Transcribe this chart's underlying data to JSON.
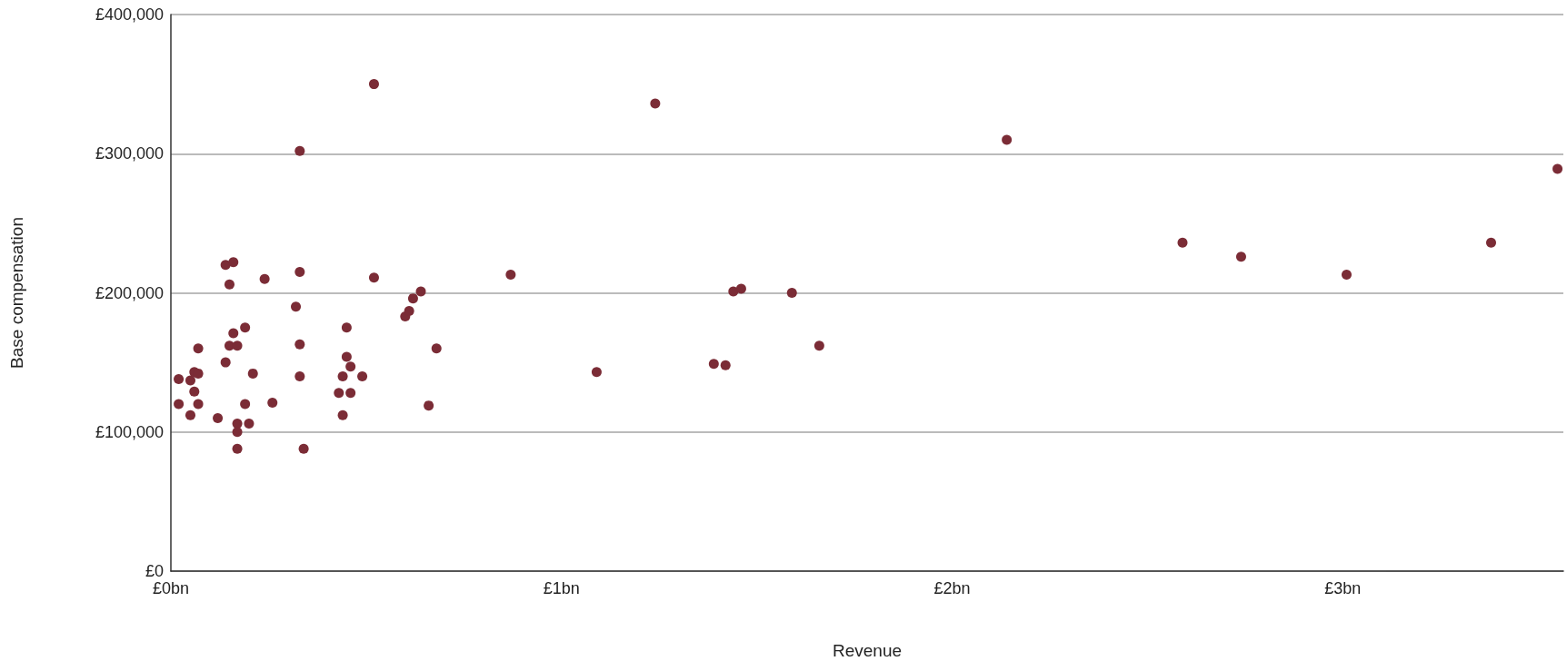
{
  "chart_data": {
    "type": "scatter",
    "xlabel": "Revenue",
    "ylabel": "Base compensation",
    "marker": "circle",
    "grid": "y",
    "xlim": [
      0,
      3.565
    ],
    "xticks": [
      {
        "value": 0,
        "label": "£0bn"
      },
      {
        "value": 1,
        "label": "£1bn"
      },
      {
        "value": 2,
        "label": "£2bn"
      },
      {
        "value": 3,
        "label": "£3bn"
      }
    ],
    "ylim": [
      0,
      400000
    ],
    "yticks": [
      {
        "value": 0,
        "label": "£0"
      },
      {
        "value": 100000,
        "label": "£100,000"
      },
      {
        "value": 200000,
        "label": "£200,000"
      },
      {
        "value": 300000,
        "label": "£300,000"
      },
      {
        "value": 400000,
        "label": "£400,000"
      }
    ],
    "series": [
      {
        "color": "#7b2c36",
        "x": [
          0.02,
          0.02,
          0.05,
          0.05,
          0.06,
          0.06,
          0.07,
          0.07,
          0.07,
          0.12,
          0.14,
          0.14,
          0.15,
          0.15,
          0.16,
          0.16,
          0.17,
          0.17,
          0.17,
          0.17,
          0.19,
          0.19,
          0.2,
          0.21,
          0.24,
          0.26,
          0.32,
          0.33,
          0.33,
          0.33,
          0.33,
          0.34,
          0.43,
          0.44,
          0.44,
          0.45,
          0.45,
          0.46,
          0.46,
          0.49,
          0.52,
          0.52,
          0.6,
          0.61,
          0.62,
          0.64,
          0.66,
          0.68,
          0.87,
          1.09,
          1.24,
          1.39,
          1.42,
          1.44,
          1.46,
          1.59,
          1.66,
          2.14,
          2.59,
          2.74,
          3.01,
          3.38,
          3.55
        ],
        "values": [
          120000,
          138000,
          137000,
          112000,
          129000,
          143000,
          142000,
          160000,
          120000,
          110000,
          150000,
          220000,
          206000,
          162000,
          222000,
          171000,
          162000,
          106000,
          100000,
          88000,
          175000,
          120000,
          106000,
          142000,
          210000,
          121000,
          190000,
          302000,
          140000,
          163000,
          215000,
          88000,
          128000,
          140000,
          112000,
          175000,
          154000,
          128000,
          147000,
          140000,
          350000,
          211000,
          183000,
          187000,
          196000,
          201000,
          119000,
          160000,
          213000,
          143000,
          336000,
          149000,
          148000,
          201000,
          203000,
          200000,
          162000,
          310000,
          236000,
          226000,
          213000,
          236000,
          289000
        ]
      }
    ]
  }
}
